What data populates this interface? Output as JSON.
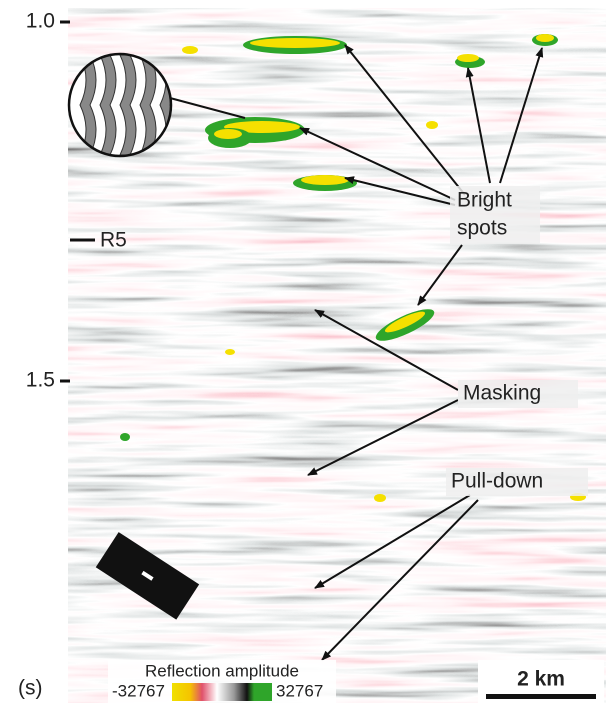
{
  "axis": {
    "ticks": [
      "1.0",
      "1.5"
    ],
    "unit": "(s)"
  },
  "horizon": "R5",
  "annotations": {
    "bright_spots": [
      "Bright",
      "spots"
    ],
    "masking": "Masking",
    "pull_down": "Pull-down"
  },
  "legend": {
    "title": "Reflection amplitude",
    "min": "-32767",
    "max": "32767"
  },
  "scale_bar": "2 km"
}
